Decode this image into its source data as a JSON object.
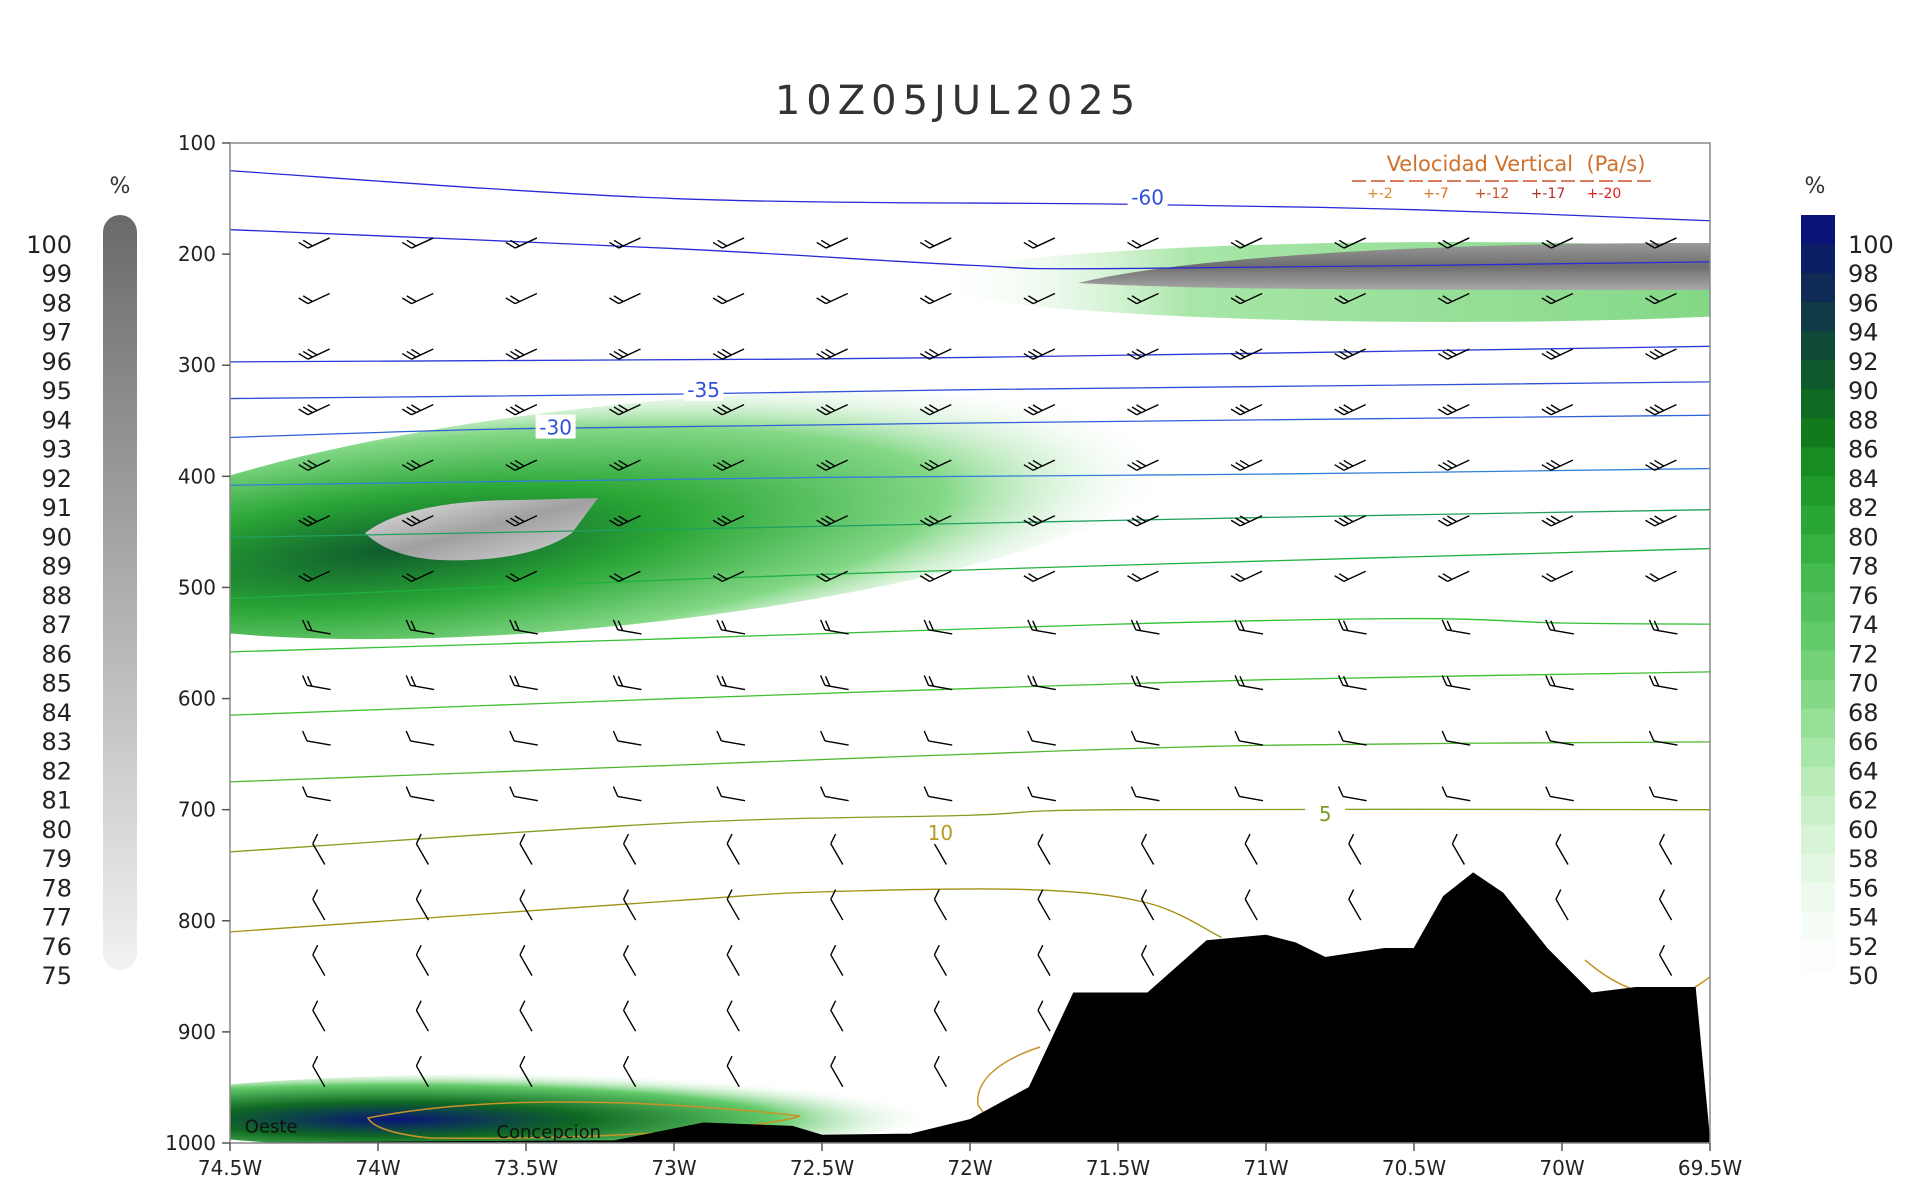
{
  "chart_data": {
    "type": "contour",
    "title": "10Z05JUL2025",
    "x_ticks": [
      "74.5W",
      "74W",
      "73.5W",
      "73W",
      "72.5W",
      "72W",
      "71.5W",
      "71W",
      "70.5W",
      "70W",
      "69.5W"
    ],
    "x_range": [
      -74.5,
      -69.5
    ],
    "y_ticks": [
      "100",
      "200",
      "300",
      "400",
      "500",
      "600",
      "700",
      "800",
      "900",
      "1000"
    ],
    "y_range": [
      100,
      1000
    ],
    "y_inverted": true,
    "left_colorbar": {
      "unit": "%",
      "labels": [
        "100",
        "99",
        "98",
        "97",
        "96",
        "95",
        "94",
        "93",
        "92",
        "91",
        "90",
        "89",
        "88",
        "87",
        "86",
        "85",
        "84",
        "83",
        "82",
        "81",
        "80",
        "79",
        "78",
        "77",
        "76",
        "75"
      ],
      "color_high": "#6a6a6a",
      "color_low": "#f2f2f2"
    },
    "right_colorbar": {
      "unit": "%",
      "labels": [
        "100",
        "98",
        "96",
        "94",
        "92",
        "90",
        "88",
        "86",
        "84",
        "82",
        "80",
        "78",
        "76",
        "74",
        "72",
        "70",
        "68",
        "66",
        "64",
        "62",
        "60",
        "58",
        "56",
        "54",
        "52",
        "50"
      ],
      "colors": [
        "#0a1478",
        "#0c1e66",
        "#0f2a55",
        "#103a45",
        "#0f4a38",
        "#0e5a2c",
        "#0f6a22",
        "#127a1c",
        "#178c20",
        "#1f9a2a",
        "#2aa636",
        "#37b042",
        "#45ba4f",
        "#54c25c",
        "#63ca6a",
        "#73d178",
        "#84d887",
        "#96df97",
        "#a8e6a7",
        "#b9ecb8",
        "#c9f0c8",
        "#d8f4d7",
        "#e4f7e3",
        "#eefaee",
        "#f6fcf6",
        "#fbfefb"
      ]
    },
    "legend": {
      "title": "Velocidad Vertical  (Pa/s)",
      "entries": [
        "+-2",
        "+-7",
        "+-12",
        "+-17",
        "+-20"
      ],
      "colors": [
        "#d98a2a",
        "#d97020",
        "#d0502a",
        "#b03028",
        "#e02020"
      ]
    },
    "contour_labels": [
      {
        "text": "-60",
        "lon": -71.4,
        "p": 150
      },
      {
        "text": "-35",
        "lon": -72.9,
        "p": 323
      },
      {
        "text": "-30",
        "lon": -73.4,
        "p": 357
      },
      {
        "text": "5",
        "lon": -70.8,
        "p": 705
      },
      {
        "text": "10",
        "lon": -72.1,
        "p": 722
      }
    ],
    "isotherms": [
      {
        "color": "#2a2ad8",
        "points": [
          [
            -74.5,
            125
          ],
          [
            -73,
            150
          ],
          [
            -71.5,
            155
          ],
          [
            -70.5,
            160
          ],
          [
            -69.5,
            170
          ]
        ]
      },
      {
        "color": "#2a2ad8",
        "points": [
          [
            -74.5,
            178
          ],
          [
            -73,
            195
          ],
          [
            -72,
            210
          ],
          [
            -71.5,
            213
          ],
          [
            -69.5,
            207
          ]
        ]
      },
      {
        "color": "#2a3ad8",
        "points": [
          [
            -74.5,
            297
          ],
          [
            -73,
            295
          ],
          [
            -72,
            293
          ],
          [
            -69.5,
            283
          ]
        ]
      },
      {
        "color": "#3050d8",
        "points": [
          [
            -74.5,
            330
          ],
          [
            -73,
            326
          ],
          [
            -72,
            322
          ],
          [
            -69.5,
            315
          ]
        ]
      },
      {
        "color": "#3060d8",
        "points": [
          [
            -74.5,
            365
          ],
          [
            -73.5,
            357
          ],
          [
            -72,
            352
          ],
          [
            -69.5,
            345
          ]
        ]
      },
      {
        "color": "#3080d8",
        "points": [
          [
            -74.5,
            408
          ],
          [
            -72.5,
            401
          ],
          [
            -71,
            398
          ],
          [
            -69.5,
            393
          ]
        ]
      },
      {
        "color": "#20a060",
        "points": [
          [
            -74.5,
            455
          ],
          [
            -72.5,
            445
          ],
          [
            -71,
            437
          ],
          [
            -69.5,
            430
          ]
        ]
      },
      {
        "color": "#20b040",
        "points": [
          [
            -74.5,
            510
          ],
          [
            -73,
            493
          ],
          [
            -71.5,
            480
          ],
          [
            -69.5,
            465
          ]
        ]
      },
      {
        "color": "#30c030",
        "points": [
          [
            -74.5,
            558
          ],
          [
            -73,
            546
          ],
          [
            -71.5,
            533
          ],
          [
            -70.5,
            528
          ],
          [
            -70,
            532
          ],
          [
            -69.5,
            533
          ]
        ]
      },
      {
        "color": "#40c030",
        "points": [
          [
            -74.5,
            615
          ],
          [
            -73,
            600
          ],
          [
            -72,
            591
          ],
          [
            -71,
            583
          ],
          [
            -69.5,
            576
          ]
        ]
      },
      {
        "color": "#50b830",
        "points": [
          [
            -74.5,
            675
          ],
          [
            -73,
            660
          ],
          [
            -72,
            650
          ],
          [
            -71,
            642
          ],
          [
            -69.5,
            639
          ]
        ]
      },
      {
        "color": "#80a020",
        "points": [
          [
            -74.5,
            738
          ],
          [
            -73,
            712
          ],
          [
            -72,
            705
          ],
          [
            -71.5,
            700
          ],
          [
            -69.5,
            700
          ]
        ]
      },
      {
        "color": "#a09010",
        "points": [
          [
            -74.5,
            810
          ],
          [
            -73,
            782
          ],
          [
            -72.5,
            774
          ],
          [
            -71.8,
            772
          ],
          [
            -71.4,
            784
          ],
          [
            -71.15,
            815
          ]
        ]
      }
    ],
    "terrain": [
      [
        -74.5,
        1000
      ],
      [
        -73.2,
        998
      ],
      [
        -72.9,
        982
      ],
      [
        -72.6,
        985
      ],
      [
        -72.5,
        993
      ],
      [
        -72.2,
        992
      ],
      [
        -72,
        979
      ],
      [
        -71.8,
        950
      ],
      [
        -71.65,
        865
      ],
      [
        -71.4,
        865
      ],
      [
        -71.2,
        818
      ],
      [
        -71,
        813
      ],
      [
        -70.9,
        820
      ],
      [
        -70.8,
        833
      ],
      [
        -70.6,
        825
      ],
      [
        -70.5,
        825
      ],
      [
        -70.4,
        778
      ],
      [
        -70.3,
        757
      ],
      [
        -70.2,
        775
      ],
      [
        -70.05,
        825
      ],
      [
        -69.9,
        865
      ],
      [
        -69.75,
        860
      ],
      [
        -69.55,
        860
      ],
      [
        -69.5,
        1000
      ]
    ],
    "annotations": [
      {
        "text": "Oeste",
        "lon": -74.45,
        "p": 985
      },
      {
        "text": "Concepcion",
        "lon": -73.6,
        "p": 990
      }
    ]
  }
}
